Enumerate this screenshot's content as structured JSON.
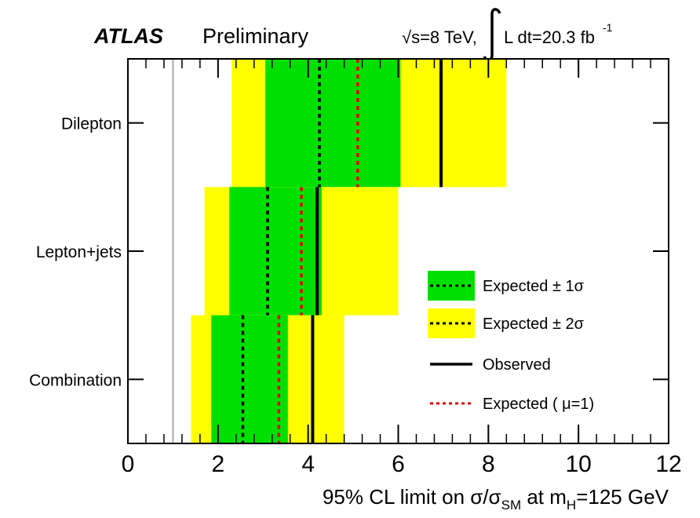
{
  "header": {
    "atlas": "ATLAS",
    "preliminary": "Preliminary",
    "energy_pre": "√s=8 TeV,",
    "lumi_main": "L dt=20.3 fb",
    "lumi_sup": "-1"
  },
  "colors": {
    "one_sigma": "#00e000",
    "two_sigma": "#ffff00",
    "observed": "#000000",
    "expected_mu1": "#e00000",
    "reference_line": "#bbbbbb"
  },
  "chart_data": {
    "type": "band",
    "xlabel_parts": {
      "a": "95% CL limit on σ/σ",
      "sub1": "SM",
      "b": " at m",
      "sub2": "H",
      "c": "=125 GeV"
    },
    "xlim": [
      0,
      12
    ],
    "xticks": [
      "0",
      "2",
      "4",
      "6",
      "8",
      "10",
      "12"
    ],
    "reference_value": 1,
    "categories": [
      {
        "label": "Dilepton",
        "two_sigma": [
          2.3,
          8.4
        ],
        "one_sigma": [
          3.05,
          6.05
        ],
        "expected": 4.25,
        "observed": 6.95,
        "expected_mu1": 5.1
      },
      {
        "label": "Lepton+jets",
        "two_sigma": [
          1.7,
          6.0
        ],
        "one_sigma": [
          2.25,
          4.3
        ],
        "expected": 3.1,
        "observed": 4.2,
        "expected_mu1": 3.85
      },
      {
        "label": "Combination",
        "two_sigma": [
          1.4,
          4.8
        ],
        "one_sigma": [
          1.85,
          3.55
        ],
        "expected": 2.55,
        "observed": 4.1,
        "expected_mu1": 3.35
      }
    ],
    "legend": {
      "position": "lower-right",
      "entries": [
        "Expected ± 1σ",
        "Expected ± 2σ",
        "Observed",
        "Expected ( μ=1)"
      ]
    }
  }
}
